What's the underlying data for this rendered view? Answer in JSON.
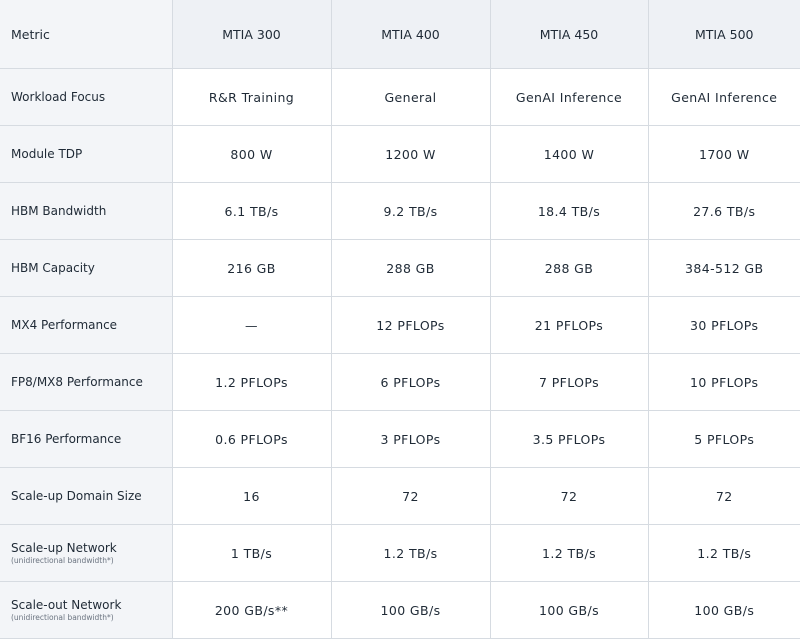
{
  "columns": [
    "Metric",
    "MTIA 300",
    "MTIA 400",
    "MTIA 450",
    "MTIA 500"
  ],
  "rows": [
    {
      "metric": "Workload Focus",
      "note": "",
      "values": [
        "R&R Training",
        "General",
        "GenAI Inference",
        "GenAI Inference"
      ]
    },
    {
      "metric": "Module TDP",
      "note": "",
      "values": [
        "800 W",
        "1200 W",
        "1400 W",
        "1700 W"
      ]
    },
    {
      "metric": "HBM Bandwidth",
      "note": "",
      "values": [
        "6.1 TB/s",
        "9.2 TB/s",
        "18.4 TB/s",
        "27.6 TB/s"
      ]
    },
    {
      "metric": "HBM Capacity",
      "note": "",
      "values": [
        "216 GB",
        "288 GB",
        "288 GB",
        "384-512 GB"
      ]
    },
    {
      "metric": "MX4 Performance",
      "note": "",
      "values": [
        "—",
        "12 PFLOPs",
        "21 PFLOPs",
        "30 PFLOPs"
      ]
    },
    {
      "metric": "FP8/MX8 Performance",
      "note": "",
      "values": [
        "1.2 PFLOPs",
        "6 PFLOPs",
        "7 PFLOPs",
        "10 PFLOPs"
      ]
    },
    {
      "metric": "BF16 Performance",
      "note": "",
      "values": [
        "0.6 PFLOPs",
        "3 PFLOPs",
        "3.5 PFLOPs",
        "5 PFLOPs"
      ]
    },
    {
      "metric": "Scale-up Domain Size",
      "note": "",
      "values": [
        "16",
        "72",
        "72",
        "72"
      ]
    },
    {
      "metric": "Scale-up Network",
      "note": "(unidirectional bandwidth*)",
      "values": [
        "1 TB/s",
        "1.2 TB/s",
        "1.2 TB/s",
        "1.2 TB/s"
      ]
    },
    {
      "metric": "Scale-out Network",
      "note": "(unidirectional bandwidth*)",
      "values": [
        "200 GB/s**",
        "100 GB/s",
        "100 GB/s",
        "100 GB/s"
      ]
    }
  ]
}
